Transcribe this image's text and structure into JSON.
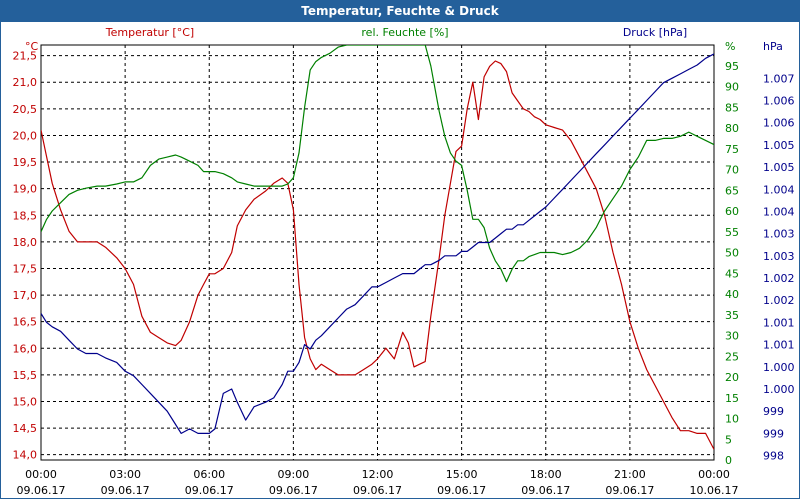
{
  "window_title": "Temperatur, Feuchte & Druck",
  "colors": {
    "temperature": "#c00000",
    "humidity": "#008000",
    "pressure": "#00008b",
    "title_bar": "#24609b",
    "grid": "#000000"
  },
  "chart_data": {
    "type": "line",
    "title": "Temperatur, Feuchte & Druck",
    "grid": true,
    "x_range": [
      "09.06.17 00:00",
      "10.06.17 00:00"
    ],
    "x_ticks": [
      {
        "time": "00:00",
        "date": "09.06.17",
        "hour": 0
      },
      {
        "time": "03:00",
        "date": "09.06.17",
        "hour": 3
      },
      {
        "time": "06:00",
        "date": "09.06.17",
        "hour": 6
      },
      {
        "time": "09:00",
        "date": "09.06.17",
        "hour": 9
      },
      {
        "time": "12:00",
        "date": "09.06.17",
        "hour": 12
      },
      {
        "time": "15:00",
        "date": "09.06.17",
        "hour": 15
      },
      {
        "time": "18:00",
        "date": "09.06.17",
        "hour": 18
      },
      {
        "time": "21:00",
        "date": "09.06.17",
        "hour": 21
      },
      {
        "time": "00:00",
        "date": "10.06.17",
        "hour": 24
      }
    ],
    "axes": {
      "temperature": {
        "unit": "°C",
        "min": 13.9,
        "max": 21.7,
        "ticks": [
          {
            "value": 14.0,
            "label": "14,0"
          },
          {
            "value": 14.5,
            "label": "14,5"
          },
          {
            "value": 15.0,
            "label": "15,0"
          },
          {
            "value": 15.5,
            "label": "15,5"
          },
          {
            "value": 16.0,
            "label": "16,0"
          },
          {
            "value": 16.5,
            "label": "16,5"
          },
          {
            "value": 17.0,
            "label": "17,0"
          },
          {
            "value": 17.5,
            "label": "17,5"
          },
          {
            "value": 18.0,
            "label": "18,0"
          },
          {
            "value": 18.5,
            "label": "18,5"
          },
          {
            "value": 19.0,
            "label": "19,0"
          },
          {
            "value": 19.5,
            "label": "19,5"
          },
          {
            "value": 20.0,
            "label": "20,0"
          },
          {
            "value": 20.5,
            "label": "20,5"
          },
          {
            "value": 21.0,
            "label": "21,0"
          },
          {
            "value": 21.5,
            "label": "21,5"
          }
        ]
      },
      "humidity": {
        "unit": "%",
        "min": 0,
        "max": 100,
        "ticks": [
          {
            "value": 0,
            "label": "0"
          },
          {
            "value": 5,
            "label": "5"
          },
          {
            "value": 10,
            "label": "10"
          },
          {
            "value": 15,
            "label": "15"
          },
          {
            "value": 20,
            "label": "20"
          },
          {
            "value": 25,
            "label": "25"
          },
          {
            "value": 30,
            "label": "30"
          },
          {
            "value": 35,
            "label": "35"
          },
          {
            "value": 40,
            "label": "40"
          },
          {
            "value": 45,
            "label": "45"
          },
          {
            "value": 50,
            "label": "50"
          },
          {
            "value": 55,
            "label": "55"
          },
          {
            "value": 60,
            "label": "60"
          },
          {
            "value": 65,
            "label": "65"
          },
          {
            "value": 70,
            "label": "70"
          },
          {
            "value": 75,
            "label": "75"
          },
          {
            "value": 80,
            "label": "80"
          },
          {
            "value": 85,
            "label": "85"
          },
          {
            "value": 90,
            "label": "90"
          },
          {
            "value": 95,
            "label": "95"
          }
        ]
      },
      "pressure": {
        "unit": "hPa",
        "min": 997.9,
        "max": 1007.25,
        "ticks": [
          {
            "value": 998.0,
            "label": "998"
          },
          {
            "value": 998.5,
            "label": "999"
          },
          {
            "value": 999.0,
            "label": "999"
          },
          {
            "value": 999.5,
            "label": "1.000"
          },
          {
            "value": 1000.0,
            "label": "1.000"
          },
          {
            "value": 1000.5,
            "label": "1.001"
          },
          {
            "value": 1001.0,
            "label": "1.001"
          },
          {
            "value": 1001.5,
            "label": "1.002"
          },
          {
            "value": 1002.0,
            "label": "1.002"
          },
          {
            "value": 1002.5,
            "label": "1.003"
          },
          {
            "value": 1003.0,
            "label": "1.003"
          },
          {
            "value": 1003.5,
            "label": "1.004"
          },
          {
            "value": 1004.0,
            "label": "1.004"
          },
          {
            "value": 1004.5,
            "label": "1.005"
          },
          {
            "value": 1005.0,
            "label": "1.005"
          },
          {
            "value": 1005.5,
            "label": "1.006"
          },
          {
            "value": 1006.0,
            "label": "1.006"
          },
          {
            "value": 1006.5,
            "label": "1.007"
          }
        ]
      }
    },
    "series": [
      {
        "name": "Temperatur [°C]",
        "axis": "temperature",
        "color": "#c00000",
        "x": [
          0,
          0.2,
          0.4,
          0.7,
          1.0,
          1.3,
          1.6,
          2.0,
          2.3,
          2.7,
          3.0,
          3.3,
          3.6,
          3.9,
          4.2,
          4.5,
          4.8,
          5.0,
          5.3,
          5.6,
          5.8,
          6.0,
          6.2,
          6.5,
          6.8,
          7.0,
          7.3,
          7.6,
          8.0,
          8.3,
          8.6,
          8.8,
          9.0,
          9.2,
          9.4,
          9.6,
          9.8,
          10.0,
          10.3,
          10.6,
          10.9,
          11.2,
          11.5,
          11.8,
          12.0,
          12.3,
          12.6,
          12.9,
          13.1,
          13.3,
          13.5,
          13.7,
          13.9,
          14.2,
          14.4,
          14.6,
          14.8,
          15.0,
          15.2,
          15.4,
          15.6,
          15.8,
          16.0,
          16.2,
          16.4,
          16.6,
          16.8,
          17.0,
          17.2,
          17.4,
          17.6,
          17.8,
          18.0,
          18.3,
          18.6,
          18.9,
          19.2,
          19.5,
          19.8,
          20.1,
          20.4,
          20.7,
          21.0,
          21.3,
          21.6,
          21.9,
          22.2,
          22.5,
          22.8,
          23.1,
          23.4,
          23.7,
          24.0
        ],
        "y": [
          20.1,
          19.6,
          19.1,
          18.6,
          18.2,
          18.0,
          18.0,
          18.0,
          17.9,
          17.7,
          17.5,
          17.2,
          16.6,
          16.3,
          16.2,
          16.1,
          16.05,
          16.15,
          16.5,
          17.0,
          17.2,
          17.4,
          17.4,
          17.5,
          17.8,
          18.3,
          18.6,
          18.8,
          18.95,
          19.1,
          19.2,
          19.1,
          18.6,
          17.2,
          16.2,
          15.8,
          15.6,
          15.7,
          15.6,
          15.5,
          15.5,
          15.5,
          15.6,
          15.7,
          15.8,
          16.0,
          15.8,
          16.3,
          16.1,
          15.65,
          15.7,
          15.75,
          16.6,
          17.7,
          18.5,
          19.1,
          19.7,
          19.8,
          20.5,
          21.0,
          20.3,
          21.1,
          21.3,
          21.4,
          21.35,
          21.2,
          20.8,
          20.65,
          20.5,
          20.45,
          20.35,
          20.3,
          20.2,
          20.15,
          20.1,
          19.9,
          19.6,
          19.3,
          19.0,
          18.5,
          17.8,
          17.2,
          16.5,
          16.0,
          15.6,
          15.3,
          15.0,
          14.7,
          14.45,
          14.45,
          14.4,
          14.4,
          14.1
        ]
      },
      {
        "name": "rel. Feuchte [%]",
        "axis": "humidity",
        "color": "#008000",
        "x": [
          0,
          0.2,
          0.4,
          0.7,
          1.0,
          1.3,
          1.6,
          2.0,
          2.3,
          2.7,
          3.0,
          3.3,
          3.6,
          3.9,
          4.2,
          4.5,
          4.8,
          5.0,
          5.3,
          5.6,
          5.8,
          6.0,
          6.2,
          6.5,
          6.8,
          7.0,
          7.3,
          7.6,
          8.0,
          8.3,
          8.6,
          8.8,
          9.0,
          9.2,
          9.4,
          9.6,
          9.8,
          10.0,
          10.3,
          10.6,
          10.9,
          11.2,
          11.5,
          11.8,
          12.0,
          12.3,
          12.6,
          12.9,
          13.1,
          13.3,
          13.5,
          13.7,
          13.9,
          14.2,
          14.4,
          14.6,
          14.8,
          15.0,
          15.2,
          15.4,
          15.6,
          15.8,
          16.0,
          16.2,
          16.4,
          16.6,
          16.8,
          17.0,
          17.2,
          17.4,
          17.6,
          17.8,
          18.0,
          18.3,
          18.6,
          18.9,
          19.2,
          19.5,
          19.8,
          20.1,
          20.4,
          20.7,
          21.0,
          21.3,
          21.6,
          21.9,
          22.2,
          22.5,
          22.8,
          23.1,
          23.4,
          23.7,
          24.0
        ],
        "y": [
          55,
          58,
          60,
          62,
          64,
          65,
          65.5,
          66,
          66,
          66.5,
          67,
          67,
          68,
          71,
          72.5,
          73,
          73.5,
          73,
          72,
          71,
          69.5,
          69.5,
          69.5,
          69,
          68,
          67,
          66.5,
          66,
          66,
          66,
          66,
          66.5,
          68,
          74,
          85,
          94,
          96,
          97,
          98,
          99.5,
          100,
          100,
          100,
          100,
          100,
          100,
          100,
          100,
          100,
          100,
          100,
          100,
          95,
          84,
          78,
          74,
          72,
          71,
          65,
          58,
          58,
          56,
          51,
          48,
          46,
          43,
          46,
          48,
          48,
          49,
          49.5,
          50,
          50,
          50,
          49.5,
          50,
          51,
          53,
          56,
          60,
          63,
          66,
          70,
          73,
          77,
          77,
          77.5,
          77.5,
          78,
          79,
          78,
          77,
          76
        ]
      },
      {
        "name": "Druck [hPa]",
        "axis": "pressure",
        "color": "#00008b",
        "x": [
          0,
          0.2,
          0.4,
          0.7,
          1.0,
          1.3,
          1.6,
          2.0,
          2.3,
          2.7,
          3.0,
          3.3,
          3.6,
          3.9,
          4.2,
          4.5,
          4.8,
          5.0,
          5.3,
          5.6,
          5.8,
          6.0,
          6.2,
          6.5,
          6.8,
          7.0,
          7.3,
          7.6,
          8.0,
          8.3,
          8.6,
          8.8,
          9.0,
          9.2,
          9.4,
          9.6,
          9.8,
          10.0,
          10.3,
          10.6,
          10.9,
          11.2,
          11.5,
          11.8,
          12.0,
          12.3,
          12.6,
          12.9,
          13.1,
          13.3,
          13.5,
          13.7,
          13.9,
          14.2,
          14.4,
          14.6,
          14.8,
          15.0,
          15.2,
          15.4,
          15.6,
          15.8,
          16.0,
          16.2,
          16.4,
          16.6,
          16.8,
          17.0,
          17.2,
          17.4,
          17.6,
          17.8,
          18.0,
          18.3,
          18.6,
          18.9,
          19.2,
          19.5,
          19.8,
          20.1,
          20.4,
          20.7,
          21.0,
          21.3,
          21.6,
          21.9,
          22.2,
          22.5,
          22.8,
          23.1,
          23.4,
          23.7,
          24.0
        ],
        "y": [
          1001.2,
          1001.0,
          1000.9,
          1000.8,
          1000.6,
          1000.4,
          1000.3,
          1000.3,
          1000.2,
          1000.1,
          999.9,
          999.8,
          999.6,
          999.4,
          999.2,
          999.0,
          998.7,
          998.5,
          998.6,
          998.5,
          998.5,
          998.5,
          998.6,
          999.4,
          999.5,
          999.2,
          998.8,
          999.1,
          999.2,
          999.3,
          999.6,
          999.9,
          999.9,
          1000.1,
          1000.5,
          1000.4,
          1000.6,
          1000.7,
          1000.9,
          1001.1,
          1001.3,
          1001.4,
          1001.6,
          1001.8,
          1001.8,
          1001.9,
          1002.0,
          1002.1,
          1002.1,
          1002.1,
          1002.2,
          1002.3,
          1002.3,
          1002.4,
          1002.5,
          1002.5,
          1002.5,
          1002.6,
          1002.6,
          1002.7,
          1002.8,
          1002.8,
          1002.8,
          1002.9,
          1003.0,
          1003.1,
          1003.1,
          1003.2,
          1003.2,
          1003.3,
          1003.4,
          1003.5,
          1003.6,
          1003.8,
          1004.0,
          1004.2,
          1004.4,
          1004.6,
          1004.8,
          1005.0,
          1005.2,
          1005.4,
          1005.6,
          1005.8,
          1006.0,
          1006.2,
          1006.4,
          1006.5,
          1006.6,
          1006.7,
          1006.8,
          1006.95,
          1007.05
        ]
      }
    ]
  }
}
